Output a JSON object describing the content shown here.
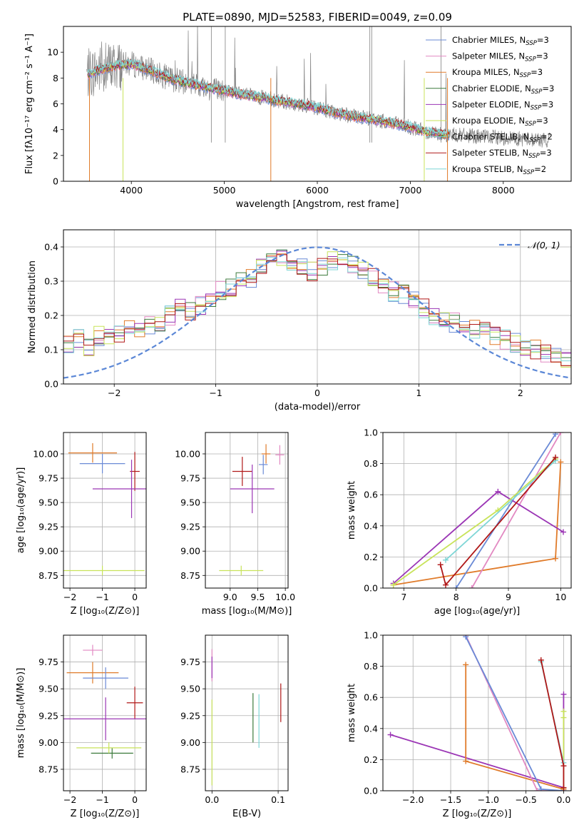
{
  "figure": {
    "title": "PLATE=0890, MJD=52583, FIBERID=0049, z=0.09"
  },
  "colors": {
    "chabrier_miles": "#6a8ad6",
    "salpeter_miles": "#e289c2",
    "kroupa_miles": "#e07b2a",
    "chabrier_elodie": "#3c7a3c",
    "salpeter_elodie": "#9b36b5",
    "kroupa_elodie": "#c8e35a",
    "chabrier_stelib": "#7fd6d6",
    "salpeter_stelib": "#b01818",
    "kroupa_stelib": "#7fd6d6",
    "data": "#808080",
    "gauss": "#5b87d6",
    "grid": "#b0b0b0"
  },
  "chart_data": [
    {
      "id": "spectrum",
      "type": "line",
      "title": "PLATE=0890, MJD=52583, FIBERID=0049, z=0.09",
      "xlabel": "wavelength [Angstrom, rest frame]",
      "ylabel": "Flux [fλ10⁻¹⁷ erg cm⁻² s⁻¹ A⁻¹]",
      "xlim": [
        3270,
        8730
      ],
      "ylim": [
        0,
        12
      ],
      "xticks": [
        4000,
        5000,
        6000,
        7000,
        8000
      ],
      "yticks": [
        0,
        2,
        4,
        6,
        8,
        10
      ],
      "grid": false,
      "legend_position": "top-right",
      "model_continuum": {
        "x": [
          3530,
          3650,
          3800,
          4000,
          4200,
          4400,
          4600,
          4800,
          5000,
          5200,
          5400,
          5600,
          5800,
          6000,
          6200,
          6400,
          6600,
          6800,
          7000,
          7200,
          7420
        ],
        "y": [
          8.3,
          8.6,
          8.9,
          9.1,
          8.6,
          8.0,
          7.6,
          7.3,
          7.0,
          6.7,
          6.5,
          6.2,
          6.0,
          5.7,
          5.3,
          5.0,
          4.8,
          4.5,
          4.2,
          3.8,
          3.6
        ]
      },
      "series": [
        {
          "name": "Chabrier MILES, N_SSP=3",
          "label_main": "Chabrier MILES, N",
          "label_sub": "SSP",
          "label_tail": "=3",
          "color_key": "chabrier_miles"
        },
        {
          "name": "Salpeter MILES, N_SSP=3",
          "label_main": "Salpeter MILES, N",
          "label_sub": "SSP",
          "label_tail": "=3",
          "color_key": "salpeter_miles"
        },
        {
          "name": "Kroupa MILES, N_SSP=3",
          "label_main": "Kroupa MILES, N",
          "label_sub": "SSP",
          "label_tail": "=3",
          "color_key": "kroupa_miles"
        },
        {
          "name": "Chabrier ELODIE, N_SSP=3",
          "label_main": "Chabrier ELODIE, N",
          "label_sub": "SSP",
          "label_tail": "=3",
          "color_key": "chabrier_elodie"
        },
        {
          "name": "Salpeter ELODIE, N_SSP=3",
          "label_main": "Salpeter ELODIE, N",
          "label_sub": "SSP",
          "label_tail": "=3",
          "color_key": "salpeter_elodie"
        },
        {
          "name": "Kroupa ELODIE, N_SSP=3",
          "label_main": "Kroupa ELODIE, N",
          "label_sub": "SSP",
          "label_tail": "=3",
          "color_key": "kroupa_elodie"
        },
        {
          "name": "Chabrier STELIB, N_SSP=2",
          "label_main": "Chabrier STELIB, N",
          "label_sub": "SSP",
          "label_tail": "=2",
          "color_key": "chabrier_stelib"
        },
        {
          "name": "Salpeter STELIB, N_SSP=3",
          "label_main": "Salpeter STELIB, N",
          "label_sub": "SSP",
          "label_tail": "=3",
          "color_key": "salpeter_stelib"
        },
        {
          "name": "Kroupa STELIB, N_SSP=2",
          "label_main": "Kroupa STELIB, N",
          "label_sub": "SSP",
          "label_tail": "=2",
          "color_key": "kroupa_stelib"
        }
      ]
    },
    {
      "id": "residuals",
      "type": "line",
      "xlabel": "(data-model)/error",
      "ylabel": "Normed distribution",
      "xlim": [
        -2.5,
        2.5
      ],
      "ylim": [
        0,
        0.45
      ],
      "xticks": [
        -2,
        -1,
        0,
        1,
        2
      ],
      "yticks": [
        0.0,
        0.1,
        0.2,
        0.3,
        0.4
      ],
      "grid": true,
      "legend_position": "top-right",
      "legend_label": "𝒩(0, 1)",
      "gaussian": {
        "mean": 0,
        "sigma": 1
      },
      "bin_edges_start": -2.5,
      "bin_width": 0.1,
      "histogram": [
        0.12,
        0.13,
        0.11,
        0.14,
        0.14,
        0.15,
        0.16,
        0.15,
        0.17,
        0.18,
        0.2,
        0.22,
        0.21,
        0.23,
        0.25,
        0.27,
        0.28,
        0.3,
        0.31,
        0.34,
        0.36,
        0.37,
        0.35,
        0.34,
        0.33,
        0.34,
        0.36,
        0.37,
        0.35,
        0.33,
        0.31,
        0.29,
        0.27,
        0.26,
        0.24,
        0.22,
        0.2,
        0.19,
        0.18,
        0.17,
        0.16,
        0.15,
        0.14,
        0.13,
        0.12,
        0.11,
        0.1,
        0.09,
        0.08,
        0.07
      ]
    },
    {
      "id": "age_vs_Z",
      "type": "scatter",
      "xlabel": "Z [log₁₀(Z/Z⊙)]",
      "ylabel": "age  [log₁₀(age/yr)]",
      "xlim": [
        -2.2,
        0.35
      ],
      "ylim": [
        8.62,
        10.22
      ],
      "xticks": [
        -2,
        -1,
        0
      ],
      "yticks": [
        8.75,
        9.0,
        9.25,
        9.5,
        9.75,
        10.0
      ],
      "grid": true,
      "points": [
        {
          "x": -1.3,
          "xerr": 0.75,
          "y": 10.01,
          "yerr": 0.1,
          "color_key": "kroupa_miles"
        },
        {
          "x": -1.0,
          "xerr": 0.7,
          "y": 9.9,
          "yerr": 0.1,
          "color_key": "chabrier_miles"
        },
        {
          "x": 0.0,
          "xerr": 0.15,
          "y": 9.82,
          "yerr": 0.2,
          "color_key": "salpeter_stelib"
        },
        {
          "x": -0.1,
          "xerr": 1.2,
          "y": 9.64,
          "yerr": 0.3,
          "color_key": "salpeter_elodie"
        },
        {
          "x": -1.0,
          "xerr": 1.3,
          "y": 8.8,
          "yerr": 0.05,
          "color_key": "kroupa_elodie"
        }
      ]
    },
    {
      "id": "age_vs_mass",
      "type": "scatter",
      "xlabel": "mass [log₁₀(M/M⊙)]",
      "ylabel": "",
      "xlim": [
        8.55,
        10.05
      ],
      "ylim": [
        8.62,
        10.22
      ],
      "xticks": [
        9.0,
        9.5,
        10.0
      ],
      "yticks": [
        8.75,
        9.0,
        9.25,
        9.5,
        9.75,
        10.0
      ],
      "grid": true,
      "points": [
        {
          "x": 9.65,
          "xerr": 0.08,
          "y": 10.0,
          "yerr": 0.1,
          "color_key": "kroupa_miles"
        },
        {
          "x": 9.9,
          "xerr": 0.08,
          "y": 9.99,
          "yerr": 0.1,
          "color_key": "salpeter_miles"
        },
        {
          "x": 9.6,
          "xerr": 0.08,
          "y": 9.89,
          "yerr": 0.1,
          "color_key": "chabrier_miles"
        },
        {
          "x": 9.22,
          "xerr": 0.18,
          "y": 9.82,
          "yerr": 0.15,
          "color_key": "salpeter_stelib"
        },
        {
          "x": 9.4,
          "xerr": 0.4,
          "y": 9.64,
          "yerr": 0.25,
          "color_key": "salpeter_elodie"
        },
        {
          "x": 9.2,
          "xerr": 0.4,
          "y": 8.8,
          "yerr": 0.05,
          "color_key": "kroupa_elodie"
        }
      ]
    },
    {
      "id": "massweight_vs_age",
      "type": "line",
      "xlabel": "age  [log₁₀(age/yr)]",
      "ylabel": "mass weight",
      "xlim": [
        6.6,
        10.2
      ],
      "ylim": [
        0.0,
        1.0
      ],
      "xticks": [
        7,
        8,
        9,
        10
      ],
      "yticks": [
        0.0,
        0.2,
        0.4,
        0.6,
        0.8,
        1.0
      ],
      "grid": true,
      "series": [
        {
          "color_key": "kroupa_miles",
          "x": [
            6.8,
            9.9,
            10.0
          ],
          "y": [
            0.02,
            0.19,
            0.81
          ]
        },
        {
          "color_key": "salpeter_miles",
          "x": [
            8.3,
            10.0
          ],
          "y": [
            0.0,
            1.0
          ]
        },
        {
          "color_key": "chabrier_miles",
          "x": [
            8.0,
            9.9
          ],
          "y": [
            0.0,
            0.99
          ]
        },
        {
          "color_key": "salpeter_elodie",
          "x": [
            6.8,
            8.8,
            10.05
          ],
          "y": [
            0.03,
            0.62,
            0.36
          ]
        },
        {
          "color_key": "kroupa_elodie",
          "x": [
            6.8,
            8.8,
            9.9
          ],
          "y": [
            0.02,
            0.5,
            0.83
          ]
        },
        {
          "color_key": "chabrier_stelib",
          "x": [
            7.8,
            9.9
          ],
          "y": [
            0.18,
            0.82
          ]
        },
        {
          "color_key": "salpeter_stelib",
          "x": [
            7.7,
            7.8,
            9.9
          ],
          "y": [
            0.15,
            0.02,
            0.84
          ]
        }
      ]
    },
    {
      "id": "mass_vs_Z",
      "type": "scatter",
      "xlabel": "Z [log₁₀(Z/Z⊙)]",
      "ylabel": "mass [log₁₀(M/M⊙)]",
      "xlim": [
        -2.2,
        0.35
      ],
      "ylim": [
        8.55,
        10.0
      ],
      "xticks": [
        -2,
        -1,
        0
      ],
      "yticks": [
        8.75,
        9.0,
        9.25,
        9.5,
        9.75
      ],
      "grid": true,
      "points": [
        {
          "x": -1.3,
          "xerr": 0.3,
          "y": 9.86,
          "yerr": 0.05,
          "color_key": "salpeter_miles"
        },
        {
          "x": -1.3,
          "xerr": 0.8,
          "y": 9.65,
          "yerr": 0.1,
          "color_key": "kroupa_miles"
        },
        {
          "x": -0.9,
          "xerr": 0.7,
          "y": 9.6,
          "yerr": 0.1,
          "color_key": "chabrier_miles"
        },
        {
          "x": 0.0,
          "xerr": 0.25,
          "y": 9.37,
          "yerr": 0.15,
          "color_key": "salpeter_stelib"
        },
        {
          "x": -0.9,
          "xerr": 1.3,
          "y": 9.22,
          "yerr": 0.2,
          "color_key": "salpeter_elodie"
        },
        {
          "x": -0.7,
          "xerr": 0.65,
          "y": 8.9,
          "yerr": 0.05,
          "color_key": "chabrier_elodie"
        },
        {
          "x": -0.8,
          "xerr": 1.0,
          "y": 8.95,
          "yerr": 0.05,
          "color_key": "kroupa_elodie"
        }
      ]
    },
    {
      "id": "mass_vs_ebv",
      "type": "scatter",
      "xlabel": "E(B-V)",
      "ylabel": "",
      "xlim": [
        -0.01,
        0.115
      ],
      "ylim": [
        8.55,
        10.0
      ],
      "xticks": [
        0.0,
        0.1
      ],
      "yticks": [
        8.75,
        9.0,
        9.25,
        9.5,
        9.75
      ],
      "grid": true,
      "points": [
        {
          "x": 0.0,
          "y": 9.72,
          "yerr": 0.15,
          "color_key": "salpeter_miles"
        },
        {
          "x": 0.0,
          "y": 9.7,
          "yerr": 0.1,
          "color_key": "salpeter_elodie"
        },
        {
          "x": 0.0,
          "y": 9.0,
          "yerr": 0.4,
          "color_key": "kroupa_elodie"
        },
        {
          "x": 0.062,
          "y": 9.23,
          "yerr": 0.23,
          "color_key": "chabrier_elodie"
        },
        {
          "x": 0.071,
          "y": 9.2,
          "yerr": 0.25,
          "color_key": "chabrier_stelib"
        },
        {
          "x": 0.104,
          "y": 9.37,
          "yerr": 0.18,
          "color_key": "salpeter_stelib"
        }
      ]
    },
    {
      "id": "massweight_vs_Z",
      "type": "line",
      "xlabel": "Z [log₁₀(Z/Z⊙)]",
      "ylabel": "mass weight",
      "xlim": [
        -2.4,
        0.1
      ],
      "ylim": [
        0.0,
        1.0
      ],
      "xticks": [
        -2.0,
        -1.5,
        -1.0,
        -0.5,
        0.0
      ],
      "yticks": [
        0.0,
        0.2,
        0.4,
        0.6,
        0.8,
        1.0
      ],
      "grid": true,
      "series": [
        {
          "color_key": "salpeter_elodie",
          "x": [
            -2.3,
            0.0,
            0.0
          ],
          "y": [
            0.36,
            0.02,
            0.62
          ]
        },
        {
          "color_key": "kroupa_miles",
          "x": [
            -1.3,
            -1.3,
            0.0
          ],
          "y": [
            0.81,
            0.19,
            0.01
          ]
        },
        {
          "color_key": "salpeter_miles",
          "x": [
            -1.3,
            -0.35,
            0.0
          ],
          "y": [
            1.0,
            0.0,
            0.0
          ]
        },
        {
          "color_key": "chabrier_miles",
          "x": [
            -1.3,
            -0.3,
            0.0
          ],
          "y": [
            0.99,
            0.01,
            0.0
          ]
        },
        {
          "color_key": "kroupa_elodie",
          "x": [
            0.0,
            0.0,
            0.0
          ],
          "y": [
            0.51,
            0.47,
            0.02
          ]
        },
        {
          "color_key": "chabrier_stelib",
          "x": [
            -0.3,
            0.0
          ],
          "y": [
            0.83,
            0.18
          ]
        },
        {
          "color_key": "salpeter_stelib",
          "x": [
            -0.3,
            0.0,
            0.0
          ],
          "y": [
            0.84,
            0.16,
            0.02
          ]
        }
      ]
    }
  ]
}
